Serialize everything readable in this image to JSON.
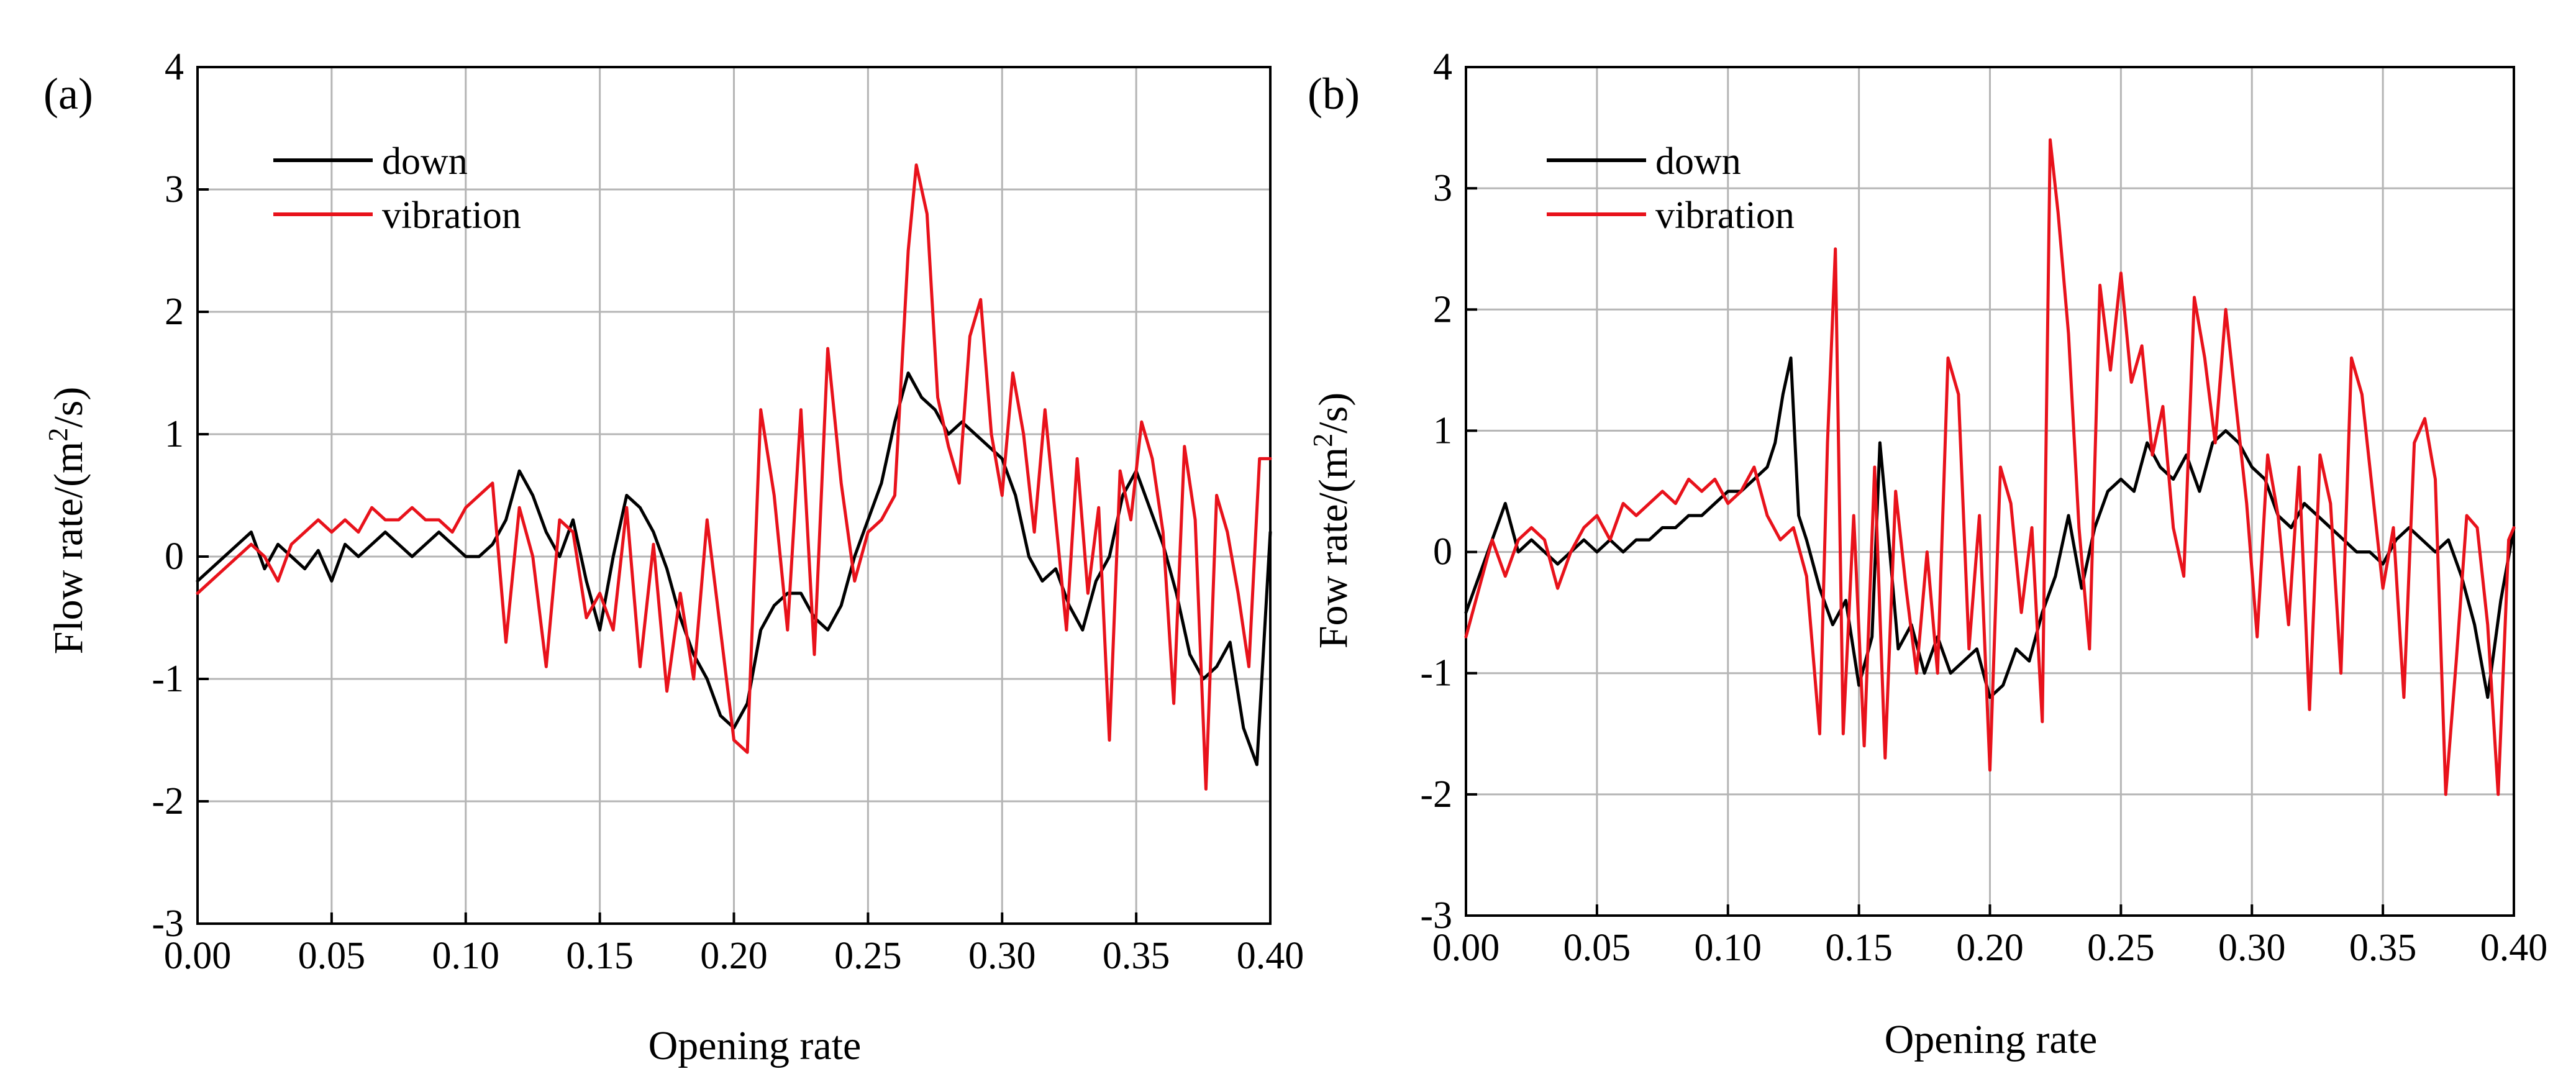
{
  "chart_data": [
    {
      "type": "line",
      "panel_label": "(a)",
      "xlabel": "Opening rate",
      "ylabel_main": "Flow rate/(m",
      "ylabel_sup": "2",
      "ylabel_tail": "/s)",
      "xlim": [
        0.0,
        0.4
      ],
      "ylim": [
        -3,
        4
      ],
      "xticks": [
        0.0,
        0.05,
        0.1,
        0.15,
        0.2,
        0.25,
        0.3,
        0.35,
        0.4
      ],
      "xtick_labels": [
        "0.00",
        "0.05",
        "0.10",
        "0.15",
        "0.20",
        "0.25",
        "0.30",
        "0.35",
        "0.40"
      ],
      "yticks": [
        -3,
        -2,
        -1,
        0,
        1,
        2,
        3,
        4
      ],
      "ytick_labels": [
        "-3",
        "-2",
        "-1",
        "0",
        "1",
        "2",
        "3",
        "4"
      ],
      "grid": true,
      "legend_position": "top-left",
      "series": [
        {
          "name": "down",
          "color": "#000000",
          "x": [
            0.0,
            0.005,
            0.01,
            0.015,
            0.02,
            0.025,
            0.03,
            0.035,
            0.04,
            0.045,
            0.05,
            0.055,
            0.06,
            0.065,
            0.07,
            0.075,
            0.08,
            0.085,
            0.09,
            0.095,
            0.1,
            0.105,
            0.11,
            0.115,
            0.12,
            0.125,
            0.13,
            0.135,
            0.14,
            0.145,
            0.15,
            0.155,
            0.16,
            0.165,
            0.17,
            0.175,
            0.18,
            0.185,
            0.19,
            0.195,
            0.2,
            0.205,
            0.21,
            0.215,
            0.22,
            0.225,
            0.23,
            0.235,
            0.24,
            0.245,
            0.25,
            0.255,
            0.26,
            0.265,
            0.27,
            0.275,
            0.28,
            0.285,
            0.29,
            0.295,
            0.3,
            0.305,
            0.31,
            0.315,
            0.32,
            0.325,
            0.33,
            0.335,
            0.34,
            0.345,
            0.35,
            0.355,
            0.36,
            0.365,
            0.37,
            0.375,
            0.38,
            0.385,
            0.39,
            0.395,
            0.4
          ],
          "y": [
            -0.2,
            -0.1,
            0.0,
            0.1,
            0.2,
            -0.1,
            0.1,
            0.0,
            -0.1,
            0.05,
            -0.2,
            0.1,
            0.0,
            0.1,
            0.2,
            0.1,
            0.0,
            0.1,
            0.2,
            0.1,
            0.0,
            0.0,
            0.1,
            0.3,
            0.7,
            0.5,
            0.2,
            0.0,
            0.3,
            -0.2,
            -0.6,
            0.0,
            0.5,
            0.4,
            0.2,
            -0.1,
            -0.5,
            -0.8,
            -1.0,
            -1.3,
            -1.4,
            -1.2,
            -0.6,
            -0.4,
            -0.3,
            -0.3,
            -0.5,
            -0.6,
            -0.4,
            0.0,
            0.3,
            0.6,
            1.1,
            1.5,
            1.3,
            1.2,
            1.0,
            1.1,
            1.0,
            0.9,
            0.8,
            0.5,
            0.0,
            -0.2,
            -0.1,
            -0.4,
            -0.6,
            -0.2,
            0.0,
            0.5,
            0.7,
            0.4,
            0.1,
            -0.3,
            -0.8,
            -1.0,
            -0.9,
            -0.7,
            -1.4,
            -1.7,
            0.2
          ]
        },
        {
          "name": "vibration",
          "color": "#e8121b",
          "x": [
            0.0,
            0.005,
            0.01,
            0.015,
            0.02,
            0.025,
            0.03,
            0.035,
            0.04,
            0.045,
            0.05,
            0.055,
            0.06,
            0.065,
            0.07,
            0.075,
            0.08,
            0.085,
            0.09,
            0.095,
            0.1,
            0.105,
            0.11,
            0.115,
            0.12,
            0.125,
            0.13,
            0.135,
            0.14,
            0.145,
            0.15,
            0.155,
            0.16,
            0.165,
            0.17,
            0.175,
            0.18,
            0.185,
            0.19,
            0.195,
            0.2,
            0.205,
            0.21,
            0.215,
            0.22,
            0.225,
            0.23,
            0.235,
            0.24,
            0.245,
            0.25,
            0.255,
            0.26,
            0.265,
            0.268,
            0.272,
            0.276,
            0.28,
            0.284,
            0.288,
            0.292,
            0.296,
            0.3,
            0.304,
            0.308,
            0.312,
            0.316,
            0.32,
            0.324,
            0.328,
            0.332,
            0.336,
            0.34,
            0.344,
            0.348,
            0.352,
            0.356,
            0.36,
            0.364,
            0.368,
            0.372,
            0.376,
            0.38,
            0.384,
            0.388,
            0.392,
            0.396,
            0.4
          ],
          "y": [
            -0.3,
            -0.2,
            -0.1,
            0.0,
            0.1,
            0.0,
            -0.2,
            0.1,
            0.2,
            0.3,
            0.2,
            0.3,
            0.2,
            0.4,
            0.3,
            0.3,
            0.4,
            0.3,
            0.3,
            0.2,
            0.4,
            0.5,
            0.6,
            -0.7,
            0.4,
            0.0,
            -0.9,
            0.3,
            0.2,
            -0.5,
            -0.3,
            -0.6,
            0.4,
            -0.9,
            0.1,
            -1.1,
            -0.3,
            -1.0,
            0.3,
            -0.6,
            -1.5,
            -1.6,
            1.2,
            0.5,
            -0.6,
            1.2,
            -0.8,
            1.7,
            0.6,
            -0.2,
            0.2,
            0.3,
            0.5,
            2.5,
            3.2,
            2.8,
            1.3,
            0.9,
            0.6,
            1.8,
            2.1,
            1.0,
            0.5,
            1.5,
            1.0,
            0.2,
            1.2,
            0.3,
            -0.6,
            0.8,
            -0.3,
            0.4,
            -1.5,
            0.7,
            0.3,
            1.1,
            0.8,
            0.2,
            -1.2,
            0.9,
            0.3,
            -1.9,
            0.5,
            0.2,
            -0.3,
            -0.9,
            0.8,
            0.8
          ]
        }
      ]
    },
    {
      "type": "line",
      "panel_label": "(b)",
      "xlabel": "Opening rate",
      "ylabel_main": "Fow rate/(m",
      "ylabel_sup": "2",
      "ylabel_tail": "/s)",
      "xlim": [
        0.0,
        0.4
      ],
      "ylim": [
        -3,
        4
      ],
      "xticks": [
        0.0,
        0.05,
        0.1,
        0.15,
        0.2,
        0.25,
        0.3,
        0.35,
        0.4
      ],
      "xtick_labels": [
        "0.00",
        "0.05",
        "0.10",
        "0.15",
        "0.20",
        "0.25",
        "0.30",
        "0.35",
        "0.40"
      ],
      "yticks": [
        -3,
        -2,
        -1,
        0,
        1,
        2,
        3,
        4
      ],
      "ytick_labels": [
        "-3",
        "-2",
        "-1",
        "0",
        "1",
        "2",
        "3",
        "4"
      ],
      "grid": true,
      "legend_position": "top-left",
      "series": [
        {
          "name": "down",
          "color": "#000000",
          "x": [
            0.0,
            0.005,
            0.01,
            0.015,
            0.02,
            0.025,
            0.03,
            0.035,
            0.04,
            0.045,
            0.05,
            0.055,
            0.06,
            0.065,
            0.07,
            0.075,
            0.08,
            0.085,
            0.09,
            0.095,
            0.1,
            0.105,
            0.11,
            0.115,
            0.118,
            0.121,
            0.124,
            0.127,
            0.13,
            0.135,
            0.14,
            0.145,
            0.15,
            0.155,
            0.158,
            0.161,
            0.165,
            0.17,
            0.175,
            0.18,
            0.185,
            0.19,
            0.195,
            0.2,
            0.205,
            0.21,
            0.215,
            0.22,
            0.225,
            0.23,
            0.235,
            0.24,
            0.245,
            0.25,
            0.255,
            0.26,
            0.265,
            0.27,
            0.275,
            0.28,
            0.285,
            0.29,
            0.295,
            0.3,
            0.305,
            0.31,
            0.315,
            0.32,
            0.325,
            0.33,
            0.335,
            0.34,
            0.345,
            0.35,
            0.355,
            0.36,
            0.365,
            0.37,
            0.375,
            0.38,
            0.385,
            0.39,
            0.395,
            0.4
          ],
          "y": [
            -0.5,
            -0.2,
            0.1,
            0.4,
            0.0,
            0.1,
            0.0,
            -0.1,
            0.0,
            0.1,
            0.0,
            0.1,
            0.0,
            0.1,
            0.1,
            0.2,
            0.2,
            0.3,
            0.3,
            0.4,
            0.5,
            0.5,
            0.6,
            0.7,
            0.9,
            1.3,
            1.6,
            0.3,
            0.1,
            -0.3,
            -0.6,
            -0.4,
            -1.1,
            -0.7,
            0.9,
            0.2,
            -0.8,
            -0.6,
            -1.0,
            -0.7,
            -1.0,
            -0.9,
            -0.8,
            -1.2,
            -1.1,
            -0.8,
            -0.9,
            -0.5,
            -0.2,
            0.3,
            -0.3,
            0.2,
            0.5,
            0.6,
            0.5,
            0.9,
            0.7,
            0.6,
            0.8,
            0.5,
            0.9,
            1.0,
            0.9,
            0.7,
            0.6,
            0.3,
            0.2,
            0.4,
            0.3,
            0.2,
            0.1,
            0.0,
            0.0,
            -0.1,
            0.1,
            0.2,
            0.1,
            0.0,
            0.1,
            -0.2,
            -0.6,
            -1.2,
            -0.4,
            0.2
          ]
        },
        {
          "name": "vibration",
          "color": "#e8121b",
          "x": [
            0.0,
            0.005,
            0.01,
            0.015,
            0.02,
            0.025,
            0.03,
            0.035,
            0.04,
            0.045,
            0.05,
            0.055,
            0.06,
            0.065,
            0.07,
            0.075,
            0.08,
            0.085,
            0.09,
            0.095,
            0.1,
            0.105,
            0.11,
            0.115,
            0.12,
            0.125,
            0.13,
            0.135,
            0.138,
            0.141,
            0.144,
            0.148,
            0.152,
            0.156,
            0.16,
            0.164,
            0.168,
            0.172,
            0.176,
            0.18,
            0.184,
            0.188,
            0.192,
            0.196,
            0.2,
            0.204,
            0.208,
            0.212,
            0.216,
            0.22,
            0.223,
            0.226,
            0.23,
            0.234,
            0.238,
            0.242,
            0.246,
            0.25,
            0.254,
            0.258,
            0.262,
            0.266,
            0.27,
            0.274,
            0.278,
            0.282,
            0.286,
            0.29,
            0.294,
            0.298,
            0.302,
            0.306,
            0.31,
            0.314,
            0.318,
            0.322,
            0.326,
            0.33,
            0.334,
            0.338,
            0.342,
            0.346,
            0.35,
            0.354,
            0.358,
            0.362,
            0.366,
            0.37,
            0.374,
            0.378,
            0.382,
            0.386,
            0.39,
            0.394,
            0.398,
            0.4
          ],
          "y": [
            -0.7,
            -0.3,
            0.1,
            -0.2,
            0.1,
            0.2,
            0.1,
            -0.3,
            0.0,
            0.2,
            0.3,
            0.1,
            0.4,
            0.3,
            0.4,
            0.5,
            0.4,
            0.6,
            0.5,
            0.6,
            0.4,
            0.5,
            0.7,
            0.3,
            0.1,
            0.2,
            -0.2,
            -1.5,
            0.9,
            2.5,
            -1.5,
            0.3,
            -1.6,
            0.7,
            -1.7,
            0.5,
            -0.3,
            -1.0,
            0.0,
            -1.0,
            1.6,
            1.3,
            -0.8,
            0.3,
            -1.8,
            0.7,
            0.4,
            -0.5,
            0.2,
            -1.4,
            3.4,
            2.8,
            1.8,
            0.2,
            -0.8,
            2.2,
            1.5,
            2.3,
            1.4,
            1.7,
            0.8,
            1.2,
            0.2,
            -0.2,
            2.1,
            1.6,
            0.9,
            2.0,
            1.2,
            0.4,
            -0.7,
            0.8,
            0.3,
            -0.6,
            0.7,
            -1.3,
            0.8,
            0.4,
            -1.0,
            1.6,
            1.3,
            0.5,
            -0.3,
            0.2,
            -1.2,
            0.9,
            1.1,
            0.6,
            -2.0,
            -0.9,
            0.3,
            0.2,
            -0.6,
            -2.0,
            0.1,
            0.2
          ]
        }
      ]
    }
  ]
}
